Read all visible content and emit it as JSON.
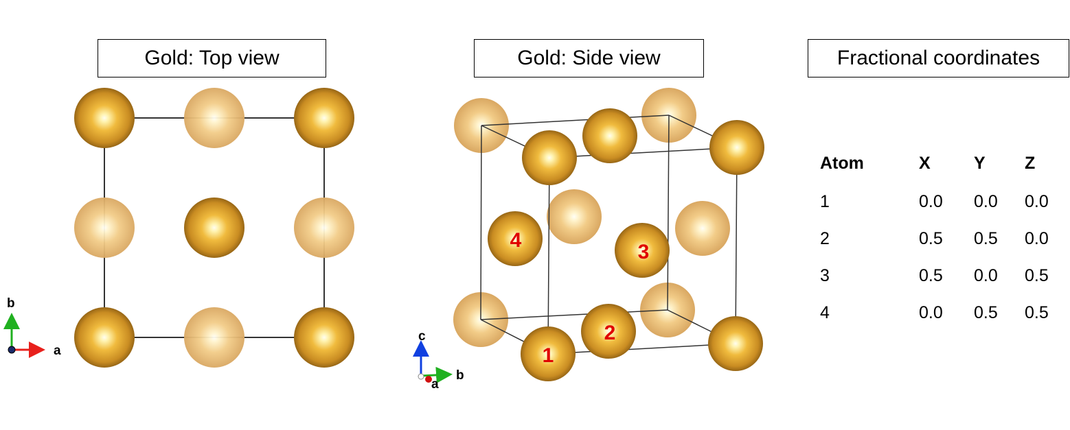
{
  "titles": {
    "top_view": "Gold: Top view",
    "side_view": "Gold: Side view",
    "coords": "Fractional coordinates"
  },
  "colors": {
    "atom_front": "#c8902a",
    "atom_back": "#e8c07a",
    "atom_highlight": "#fffbe6",
    "atom_shadow": "#8a5a10",
    "cell_edge": "#333333",
    "label_red": "#e00000",
    "axis_a": "#e8201c",
    "axis_b": "#20b020",
    "axis_c": "#1040e0"
  },
  "top_view_axes": {
    "a": "a",
    "b": "b"
  },
  "side_view_axes": {
    "a": "a",
    "b": "b",
    "c": "c"
  },
  "atom_labels": [
    "1",
    "2",
    "3",
    "4"
  ],
  "table": {
    "headers": [
      "Atom",
      "X",
      "Y",
      "Z"
    ],
    "rows": [
      [
        "1",
        "0.0",
        "0.0",
        "0.0"
      ],
      [
        "2",
        "0.5",
        "0.5",
        "0.0"
      ],
      [
        "3",
        "0.5",
        "0.0",
        "0.5"
      ],
      [
        "4",
        "0.0",
        "0.5",
        "0.5"
      ]
    ]
  }
}
